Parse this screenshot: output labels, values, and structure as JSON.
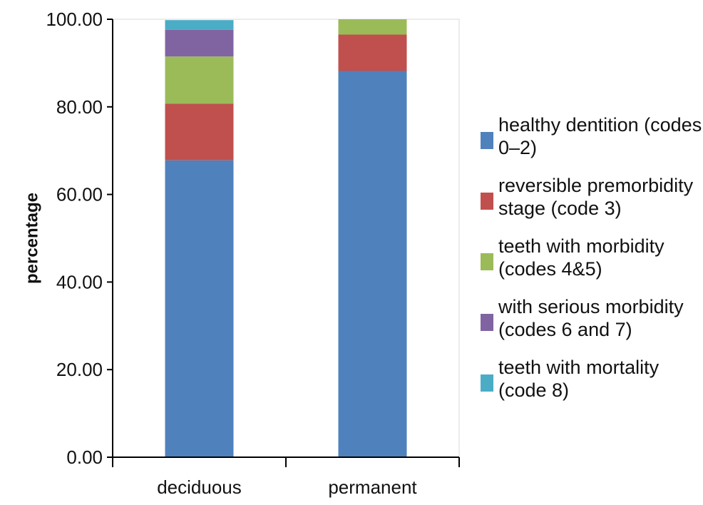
{
  "chart_data": {
    "type": "bar",
    "stacked": true,
    "categories": [
      "deciduous",
      "permanent"
    ],
    "series": [
      {
        "name": "healthy dentition (codes 0–2)",
        "legend_lines": [
          "healthy dentition (codes",
          "0–2)"
        ],
        "color": "#4F81BD",
        "values": [
          67.8,
          88.2
        ]
      },
      {
        "name": "reversible premorbidity stage (code 3)",
        "legend_lines": [
          "reversible premorbidity",
          "stage (code 3)"
        ],
        "color": "#C0504D",
        "values": [
          12.9,
          8.3
        ]
      },
      {
        "name": "teeth with morbidity (codes 4&5)",
        "legend_lines": [
          "teeth with morbidity",
          "(codes 4&5)"
        ],
        "color": "#9BBB59",
        "values": [
          10.8,
          4.5
        ]
      },
      {
        "name": "with serious morbidity (codes 6 and 7)",
        "legend_lines": [
          "with serious morbidity",
          "(codes 6 and 7)"
        ],
        "color": "#8064A2",
        "values": [
          6.1,
          0
        ]
      },
      {
        "name": "teeth with mortality (code 8)",
        "legend_lines": [
          "teeth with mortality",
          "(code 8)"
        ],
        "color": "#4BACC6",
        "values": [
          2.2,
          0
        ]
      }
    ],
    "ylabel": "percentage",
    "xlabel": "",
    "ylim": [
      0,
      100
    ],
    "yticks": [
      "0.00",
      "20.00",
      "40.00",
      "60.00",
      "80.00",
      "100.00"
    ],
    "legend_position": "right",
    "grid": false
  }
}
